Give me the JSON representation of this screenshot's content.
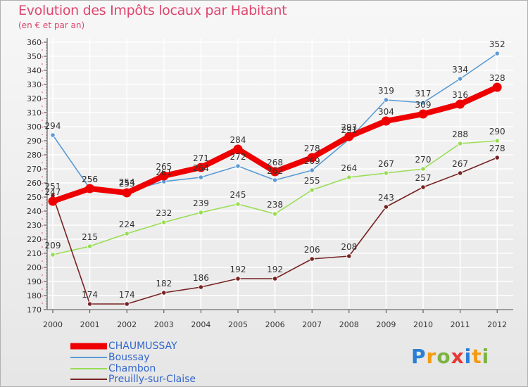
{
  "header": {
    "title": "Evolution des Impôts locaux par Habitant",
    "subtitle": "(en € et par an)"
  },
  "logo": {
    "text": "Proxiti",
    "letters": [
      "P",
      "r",
      "o",
      "x",
      "i",
      "t",
      "i"
    ]
  },
  "chart_data": {
    "type": "line",
    "title": "Evolution des Impôts locaux par Habitant",
    "subtitle": "(en € et par an)",
    "xlabel": "",
    "ylabel": "",
    "categories": [
      "2000",
      "2001",
      "2002",
      "2003",
      "2004",
      "2005",
      "2006",
      "2007",
      "2008",
      "2009",
      "2010",
      "2011",
      "2012"
    ],
    "ylim": [
      170,
      360
    ],
    "yticks": [
      170,
      180,
      190,
      200,
      210,
      220,
      230,
      240,
      250,
      260,
      270,
      280,
      290,
      300,
      310,
      320,
      330,
      340,
      350,
      360
    ],
    "grid": true,
    "legend_position": "bottom-left",
    "series": [
      {
        "name": "CHAUMUSSAY",
        "color": "#ee0000",
        "values": [
          247,
          256,
          253,
          265,
          271,
          284,
          268,
          278,
          293,
          304,
          309,
          316,
          328
        ],
        "labels": [
          "247",
          "256",
          "253",
          "265",
          "271",
          "284",
          "268",
          "278",
          "293",
          "304",
          "309",
          "316",
          "328"
        ]
      },
      {
        "name": "Boussay",
        "color": "#5b9bd5",
        "values": [
          294,
          256,
          254,
          261,
          264,
          272,
          262,
          269,
          291,
          319,
          317,
          334,
          352
        ],
        "labels": [
          "294",
          "256",
          "254",
          "261",
          "264",
          "272",
          "262",
          "269",
          "291",
          "319",
          "317",
          "334",
          "352"
        ]
      },
      {
        "name": "Chambon",
        "color": "#99dd55",
        "values": [
          209,
          215,
          224,
          232,
          239,
          245,
          238,
          255,
          264,
          267,
          270,
          288,
          290
        ],
        "labels": [
          "209",
          "215",
          "224",
          "232",
          "239",
          "245",
          "238",
          "255",
          "264",
          "267",
          "270",
          "288",
          "290"
        ]
      },
      {
        "name": "Preuilly-sur-Claise",
        "color": "#772222",
        "values": [
          251,
          174,
          174,
          182,
          186,
          192,
          192,
          206,
          208,
          243,
          257,
          267,
          278
        ],
        "labels": [
          "251",
          "174",
          "174",
          "182",
          "186",
          "192",
          "192",
          "206",
          "208",
          "243",
          "257",
          "267",
          "278"
        ]
      }
    ]
  }
}
